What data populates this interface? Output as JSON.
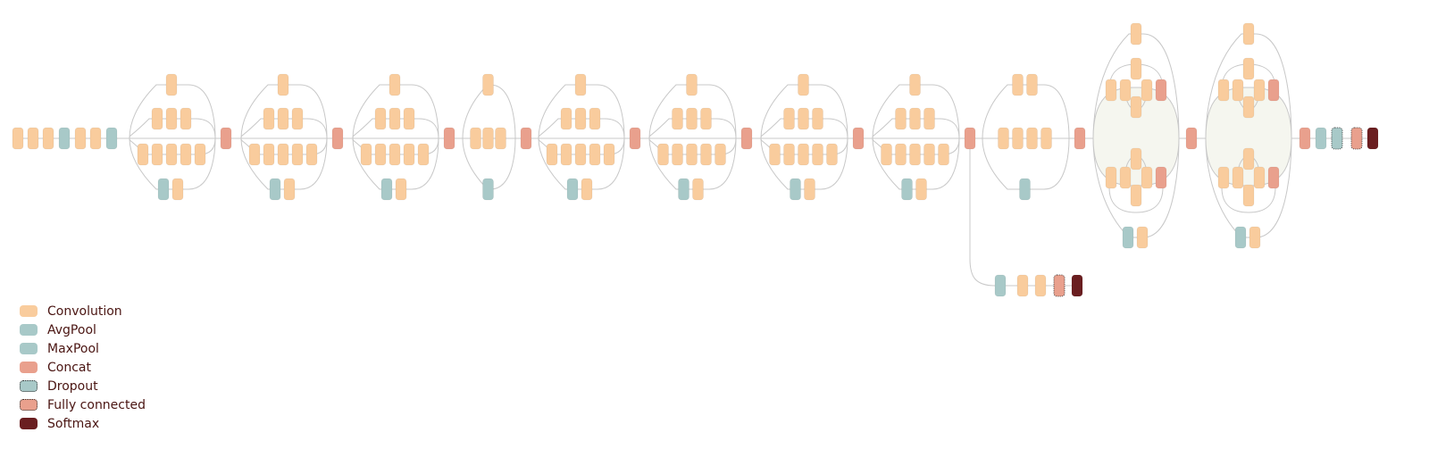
{
  "colors": {
    "Convolution": "#f9cc9d",
    "AvgPool": "#a8c9c8",
    "MaxPool": "#a8c9c8",
    "Concat": "#e9a08d",
    "Dropout": "#a8c9c8",
    "Fully connected": "#e9a08d",
    "Softmax": "#6a1e20",
    "line": "#c8c8c8",
    "module_fill": "#f5f6ef"
  },
  "legend": [
    {
      "label": "Convolution",
      "type": "Convolution",
      "dotted": false
    },
    {
      "label": "AvgPool",
      "type": "AvgPool",
      "dotted": false
    },
    {
      "label": "MaxPool",
      "type": "MaxPool",
      "dotted": false
    },
    {
      "label": "Concat",
      "type": "Concat",
      "dotted": false
    },
    {
      "label": "Dropout",
      "type": "Dropout",
      "dotted": true
    },
    {
      "label": "Fully connected",
      "type": "Fully connected",
      "dotted": true
    },
    {
      "label": "Softmax",
      "type": "Softmax",
      "dotted": false
    }
  ],
  "network": {
    "stem": [
      "Convolution",
      "Convolution",
      "Convolution",
      "MaxPool",
      "Convolution",
      "Convolution",
      "MaxPool"
    ],
    "modules": [
      {
        "kind": "A",
        "concat": "Concat"
      },
      {
        "kind": "A",
        "concat": "Concat"
      },
      {
        "kind": "A",
        "concat": "Concat"
      },
      {
        "kind": "B",
        "concat": "Concat"
      },
      {
        "kind": "C",
        "concat": "Concat"
      },
      {
        "kind": "C",
        "concat": "Concat"
      },
      {
        "kind": "C",
        "concat": "Concat"
      },
      {
        "kind": "C",
        "concat": "Concat"
      },
      {
        "kind": "D",
        "concat": "Concat"
      },
      {
        "kind": "E",
        "concat": "Concat"
      },
      {
        "kind": "E",
        "concat": null
      }
    ],
    "auxiliary_head": [
      "AvgPool",
      "Convolution",
      "Convolution",
      "Fully connected",
      "Softmax"
    ],
    "final_head": [
      "Concat",
      "AvgPool",
      "Dropout",
      "Fully connected",
      "Softmax"
    ]
  }
}
